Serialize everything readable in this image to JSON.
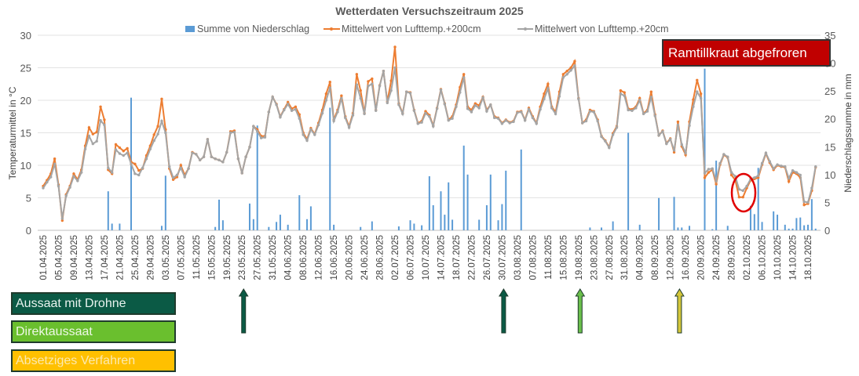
{
  "chart_data": {
    "type": "bar+line",
    "title": "Wetterdaten Versuchszeitraum 2025",
    "ylabel_left": "Temperaturmittel in °C",
    "ylabel_right": "Niederschlagssumme in mm",
    "ylim_left": [
      0,
      30
    ],
    "ylim_right": [
      0,
      35
    ],
    "yticks_left": [
      0,
      5,
      10,
      15,
      20,
      25,
      30
    ],
    "yticks_right": [
      0,
      5,
      10,
      15,
      20,
      25,
      30,
      35
    ],
    "grid": true,
    "legend_position": "top",
    "x_resolution": "daily",
    "x_tick_labels": [
      "01.04.2025",
      "05.04.2025",
      "09.04.2025",
      "13.04.2025",
      "17.04.2025",
      "21.04.2025",
      "25.04.2025",
      "29.04.2025",
      "03.05.2025",
      "07.05.2025",
      "11.05.2025",
      "15.05.2025",
      "19.05.2025",
      "23.05.2025",
      "27.05.2025",
      "31.05.2025",
      "04.06.2025",
      "08.06.2025",
      "12.06.2025",
      "16.06.2025",
      "20.06.2025",
      "24.06.2025",
      "28.06.2025",
      "02.07.2025",
      "06.07.2025",
      "10.07.2025",
      "14.07.2025",
      "18.07.2025",
      "22.07.2025",
      "26.07.2025",
      "30.07.2025",
      "03.08.2025",
      "07.08.2025",
      "11.08.2025",
      "15.08.2025",
      "19.08.2025",
      "23.08.2025",
      "27.08.2025",
      "31.08.2025",
      "04.09.2025",
      "08.09.2025",
      "12.09.2025",
      "16.09.2025",
      "20.09.2025",
      "24.09.2025",
      "28.09.2025",
      "02.10.2025",
      "06.10.2025",
      "10.10.2025",
      "14.10.2025",
      "18.10.2025"
    ],
    "series": [
      {
        "name": "Summe von Niederschlag",
        "type": "bar",
        "axis": "right",
        "color": "#5b9bd5",
        "values": [
          0,
          0,
          0,
          0,
          0,
          0,
          0,
          0,
          0,
          0,
          0,
          0,
          0,
          0,
          0,
          0,
          0,
          7,
          1.2,
          0,
          1.2,
          0,
          0,
          23.8,
          0,
          0,
          0,
          0,
          0,
          0,
          0,
          0.8,
          9.8,
          0,
          0,
          0,
          0,
          0,
          0,
          0,
          0,
          0,
          0,
          0,
          0,
          0.6,
          5.5,
          1.8,
          0,
          0,
          0,
          0,
          0,
          0,
          4.8,
          2,
          18.8,
          0,
          0,
          0.6,
          0,
          1.5,
          2.8,
          0,
          1,
          0,
          0,
          6.3,
          0,
          2,
          4.3,
          0,
          0,
          0,
          0,
          22,
          1,
          0,
          0,
          0,
          0,
          0,
          0,
          0.6,
          0,
          0,
          1.6,
          0,
          0,
          0,
          0,
          0,
          0,
          0.7,
          0,
          0,
          1.8,
          1.2,
          0,
          0.9,
          0,
          9.7,
          4.5,
          0,
          7,
          2.8,
          8.6,
          1.9,
          0,
          0,
          15.2,
          10,
          0,
          0,
          1.9,
          0,
          4.5,
          10,
          0,
          1.8,
          4.7,
          10.7,
          0,
          0,
          0,
          14.5,
          0,
          0,
          0,
          0,
          0,
          0,
          0,
          0,
          0,
          0,
          0,
          0,
          0,
          0,
          0,
          0,
          0,
          0.5,
          0,
          0,
          0.5,
          0,
          0,
          1.6,
          0,
          0,
          0,
          17.5,
          0,
          0,
          1,
          0,
          0,
          0,
          0,
          5.8,
          0,
          0,
          0,
          6,
          0.5,
          0.5,
          0,
          0.8,
          0,
          0,
          0,
          29,
          0,
          0.2,
          12.5,
          0,
          0,
          0.8,
          0,
          0,
          0,
          0,
          0,
          4.4,
          2.9,
          11.2,
          1.5,
          0,
          0,
          3.4,
          2.8,
          0,
          1,
          0.3,
          0.3,
          2.2,
          2.3,
          0.9,
          1,
          5.6,
          0.3
        ]
      },
      {
        "name": "Mittelwert von Lufttemp.+200cm",
        "type": "line",
        "axis": "left",
        "color": "#ed7d31",
        "values": [
          6.8,
          7.7,
          8.7,
          11,
          7,
          1.5,
          5.5,
          6.8,
          8.7,
          7.8,
          9.3,
          13,
          15.8,
          14.8,
          15.1,
          19,
          17,
          9.3,
          8.7,
          13.2,
          12.7,
          12.2,
          12.6,
          10.5,
          10.2,
          9.2,
          9.5,
          11.5,
          13,
          14.7,
          16,
          20.2,
          15.5,
          9.5,
          7.8,
          8.2,
          10,
          8.5,
          9.5,
          12,
          11.7,
          10.8,
          11.3,
          14,
          11.3,
          11,
          10.8,
          10.5,
          12,
          15.2,
          15.3,
          11,
          8.8,
          11.3,
          12.8,
          16,
          15.5,
          14.5,
          14.5,
          18.2,
          20.5,
          19.4,
          17.5,
          18.6,
          19.7,
          18.7,
          19,
          17.8,
          15,
          14,
          15.7,
          14.8,
          16.5,
          18.5,
          21,
          22.8,
          17,
          18.5,
          20.7,
          17.5,
          16,
          18,
          24,
          21.5,
          18,
          22.9,
          23.3,
          18.5,
          22.3,
          24.5,
          19.8,
          23,
          28.2,
          19.5,
          18,
          21.3,
          21.2,
          18.5,
          16.5,
          16.8,
          18.3,
          17.7,
          16.1,
          18.8,
          21.7,
          19.5,
          17,
          17.5,
          19.3,
          22,
          24,
          19,
          18.5,
          19.5,
          19.2,
          20.5,
          18.5,
          19.3,
          17.5,
          17.3,
          16.5,
          17,
          16.6,
          16.8,
          18.2,
          18.3,
          17,
          18.8,
          17.5,
          16.5,
          19,
          21,
          22.5,
          19,
          18.2,
          21.3,
          24,
          24.5,
          25,
          26,
          20.3,
          16.5,
          17,
          18.5,
          18.3,
          17,
          14.5,
          13.8,
          12.8,
          14.9,
          16,
          21.5,
          21.2,
          18.7,
          18.6,
          19,
          20.3,
          18,
          18.5,
          21.3,
          17.8,
          14.6,
          15.3,
          13.4,
          14.1,
          12,
          16.7,
          12.9,
          11.6,
          16.7,
          20.1,
          23.1,
          21,
          8.1,
          8.9,
          9.3,
          7.1,
          10.1,
          11.6,
          11.2,
          8.5,
          7.7,
          5.1,
          5.1,
          6.5,
          7.7,
          7.9,
          8.1,
          10.1,
          11.8,
          10.4,
          9.3,
          10,
          9.8,
          9.7,
          7.5,
          8.9,
          8.7,
          8.1,
          3.9,
          4.1,
          6.1,
          9.7
        ]
      },
      {
        "name": "Mittelwert von Lufttemp.+20cm",
        "type": "line",
        "axis": "left",
        "color": "#a5a5a5",
        "values": [
          6.5,
          7.4,
          8.2,
          10.2,
          6.8,
          1.8,
          5.3,
          6.6,
          8.3,
          7.6,
          8.9,
          12.5,
          14.5,
          13.3,
          13.7,
          16.9,
          16.2,
          9.6,
          8.9,
          12.4,
          11.8,
          11.5,
          11.9,
          10.2,
          8.7,
          8.5,
          9.6,
          11,
          12.5,
          13.8,
          14.8,
          16.8,
          15,
          9.8,
          8.1,
          8.5,
          9.6,
          8.2,
          9.5,
          11.9,
          11.7,
          10.8,
          11.3,
          14,
          11.3,
          11,
          10.8,
          10.5,
          12,
          15,
          15.1,
          11,
          8.8,
          11.3,
          12.8,
          16,
          15.2,
          14.2,
          14.3,
          18.2,
          20.5,
          19.3,
          17.4,
          18.5,
          19.4,
          18.4,
          18.6,
          17.2,
          14.7,
          13.8,
          15.5,
          14.7,
          16.2,
          18,
          20,
          21.9,
          16.8,
          18.2,
          20.3,
          17.3,
          15.8,
          17.7,
          22.4,
          20.3,
          17.9,
          22.2,
          22.5,
          18.4,
          22.2,
          24.5,
          19.6,
          21.5,
          25,
          19.3,
          17.9,
          21.3,
          21.1,
          18.4,
          16.4,
          16.6,
          18,
          17.5,
          16,
          18.7,
          21.6,
          19.4,
          16.9,
          17.2,
          19,
          21.2,
          23.5,
          18.7,
          18.2,
          19.2,
          18.8,
          20.4,
          18.3,
          19.3,
          17.3,
          17.2,
          16.4,
          16.9,
          16.5,
          16.7,
          18.1,
          18.2,
          16.9,
          18.6,
          17.3,
          16.4,
          18.6,
          20.2,
          21.8,
          18.8,
          17.9,
          20.6,
          23.5,
          24,
          24.6,
          25.3,
          20.2,
          16.5,
          16.8,
          18.3,
          18.2,
          16.8,
          14.4,
          13.7,
          12.7,
          14.7,
          15.8,
          21,
          20.7,
          18.5,
          18.4,
          18.8,
          20,
          17.9,
          18.3,
          20.5,
          17.6,
          14.6,
          15.2,
          13.3,
          14,
          12.3,
          16.2,
          13.2,
          11.9,
          16.1,
          19,
          21.3,
          20.3,
          8.8,
          9.4,
          9.5,
          7.6,
          10.3,
          11.7,
          11.3,
          8.9,
          8.3,
          6.3,
          6.1,
          6.8,
          7.9,
          8.1,
          8.4,
          10.3,
          11.9,
          10.6,
          9.5,
          10.1,
          9.9,
          9.8,
          8,
          9.2,
          8.9,
          8.5,
          4.4,
          4.3,
          6.5,
          9.8
        ]
      }
    ],
    "annotations": {
      "callout": {
        "text": "Ramtillkraut abgefroren",
        "color": "#c00000"
      },
      "circle_marker": {
        "dates": [
          "30.09.2025",
          "02.10.2025"
        ],
        "color": "#e00000"
      },
      "arrows": [
        {
          "date": "23.05.2025",
          "category": "Aussaat mit Drohne",
          "color": "#0b5a45"
        },
        {
          "date": "30.07.2025",
          "category": "Aussaat mit Drohne",
          "color": "#0b5a45"
        },
        {
          "date": "19.08.2025",
          "category": "Direktaussaat",
          "color": "#6abf4b"
        },
        {
          "date": "14.09.2025",
          "category": "Absetziges Verfahren",
          "color": "#d4c63a"
        }
      ]
    }
  },
  "method_legend": [
    {
      "label": "Aussaat mit Drohne",
      "color": "#0b5a45",
      "text_color": "#e8f3ee"
    },
    {
      "label": "Direktaussaat",
      "color": "#6abf2e",
      "text_color": "#eef8e6"
    },
    {
      "label": "Absetziges Verfahren",
      "color": "#ffc000",
      "text_color": "#fbe9b0"
    }
  ]
}
